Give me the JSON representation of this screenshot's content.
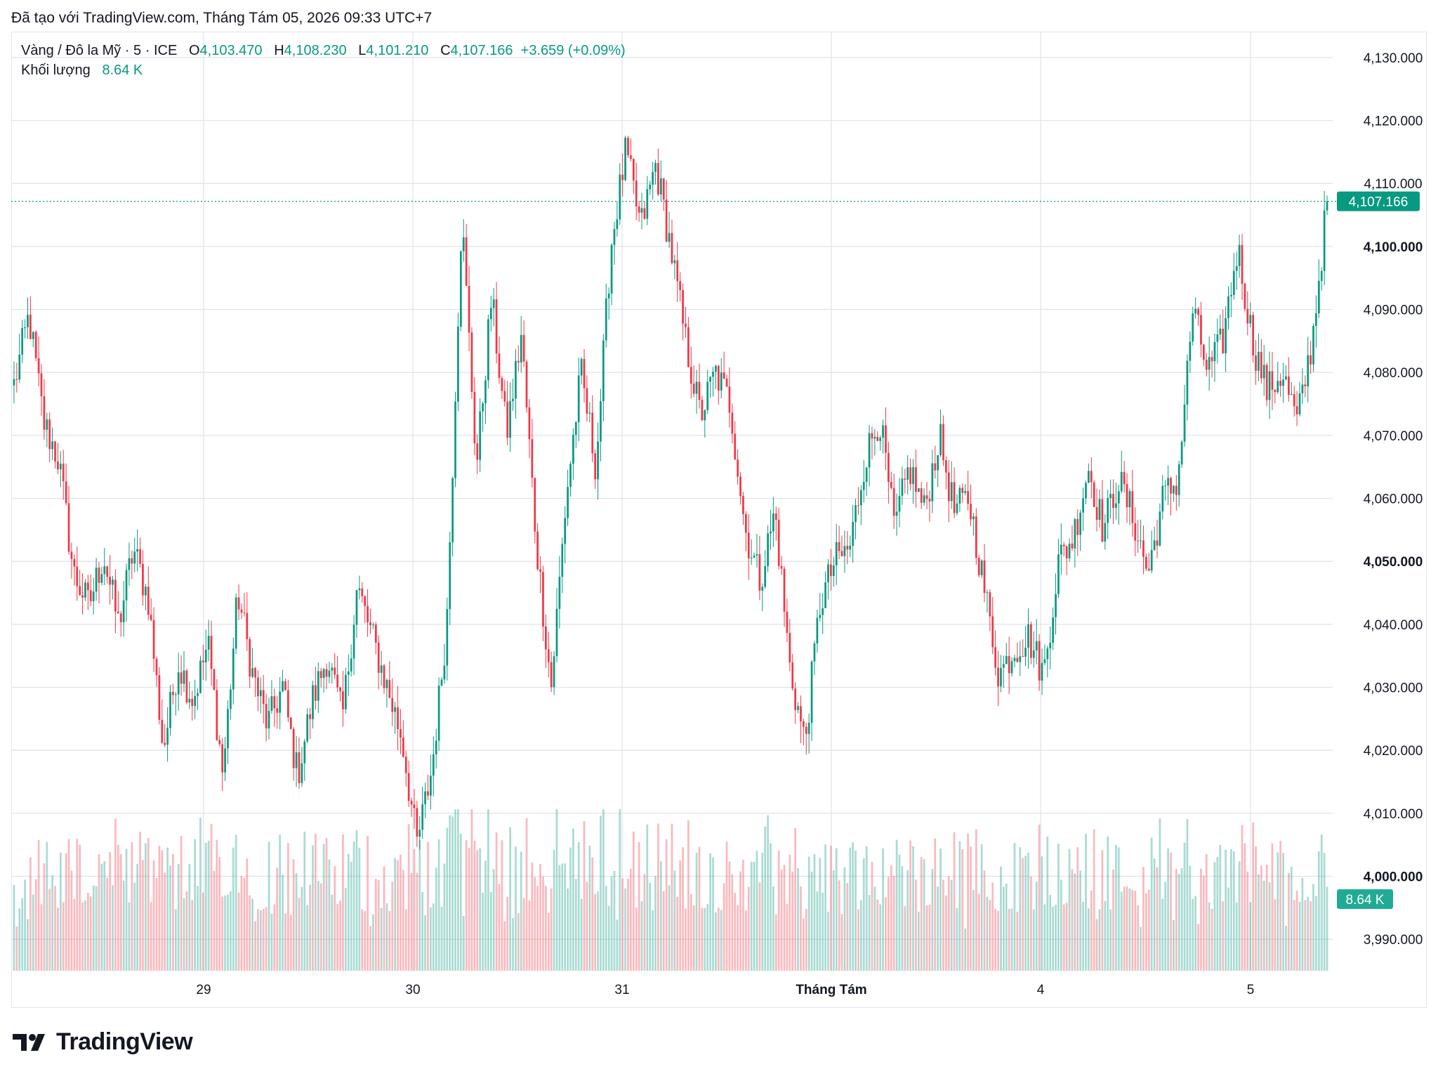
{
  "header": {
    "text": "Đã tạo với TradingView.com, Tháng Tám 05, 2026 09:33 UTC+7"
  },
  "legend": {
    "symbol": "Vàng / Đô la Mỹ · 5 · ICE",
    "open_label": "O",
    "open": "4,103.470",
    "high_label": "H",
    "high": "4,108.230",
    "low_label": "L",
    "low": "4,101.210",
    "close_label": "C",
    "close": "4,107.166",
    "change": "+3.659 (+0.09%)",
    "volume_label": "Khối lượng",
    "volume": "8.64 K"
  },
  "colors": {
    "up": "#089981",
    "down": "#f23645",
    "grid": "#e0e3eb",
    "text": "#131722"
  },
  "footer": {
    "brand": "TradingView",
    "logo_icon": "tradingview-logo-icon"
  },
  "chart_data": {
    "type": "candlestick",
    "symbol": "Vàng / Đô la Mỹ",
    "interval": "5",
    "y_axis_ticks": [
      "4,130.000",
      "4,120.000",
      "4,110.000",
      "4,100.000",
      "4,090.000",
      "4,080.000",
      "4,070.000",
      "4,060.000",
      "4,050.000",
      "4,040.000",
      "4,030.000",
      "4,020.000",
      "4,010.000",
      "4,000.000",
      "3,990.000"
    ],
    "y_axis_bold_ticks": [
      "4,100.000",
      "4,050.000",
      "4,000.000"
    ],
    "ylim": [
      3985,
      4134
    ],
    "x_axis_ticks": [
      "29",
      "30",
      "31",
      "Tháng Tám",
      "4",
      "5"
    ],
    "x_axis_bold_ticks": [
      "Tháng Tám"
    ],
    "last_price": 4107.166,
    "last_price_label": "4,107.166",
    "last_volume_label": "8.64 K",
    "grid": true,
    "close_path": [
      [
        "start",
        4078
      ],
      [
        "",
        4089
      ],
      [
        "",
        4072
      ],
      [
        "",
        4066
      ],
      [
        "",
        4048
      ],
      [
        "",
        4043
      ],
      [
        "",
        4051
      ],
      [
        "",
        4040
      ],
      [
        "",
        4052
      ],
      [
        "",
        4044
      ],
      [
        "",
        4020
      ],
      [
        "",
        4034
      ],
      [
        "",
        4028
      ],
      [
        "",
        4037
      ],
      [
        "",
        4016
      ],
      [
        "29",
        4045
      ],
      [
        "",
        4032
      ],
      [
        "",
        4024
      ],
      [
        "",
        4030
      ],
      [
        "",
        4016
      ],
      [
        "",
        4028
      ],
      [
        "",
        4035
      ],
      [
        "",
        4025
      ],
      [
        "",
        4046
      ],
      [
        "",
        4038
      ],
      [
        "",
        4030
      ],
      [
        "",
        4022
      ],
      [
        "",
        4005
      ],
      [
        "",
        4017
      ],
      [
        "30",
        4040
      ],
      [
        "",
        4105
      ],
      [
        "",
        4065
      ],
      [
        "",
        4092
      ],
      [
        "",
        4070
      ],
      [
        "",
        4086
      ],
      [
        "",
        4053
      ],
      [
        "",
        4030
      ],
      [
        "",
        4060
      ],
      [
        "",
        4080
      ],
      [
        "",
        4065
      ],
      [
        "31",
        4100
      ],
      [
        "",
        4115
      ],
      [
        "",
        4103
      ],
      [
        "",
        4113
      ],
      [
        "",
        4100
      ],
      [
        "",
        4085
      ],
      [
        "",
        4073
      ],
      [
        "",
        4080
      ],
      [
        "",
        4075
      ],
      [
        "",
        4055
      ],
      [
        "",
        4047
      ],
      [
        "",
        4058
      ],
      [
        "",
        4033
      ],
      [
        "",
        4021
      ],
      [
        "",
        4043
      ],
      [
        "Tháng Tám",
        4050
      ],
      [
        "",
        4052
      ],
      [
        "",
        4066
      ],
      [
        "",
        4073
      ],
      [
        "",
        4055
      ],
      [
        "",
        4065
      ],
      [
        "",
        4058
      ],
      [
        "",
        4070
      ],
      [
        "",
        4058
      ],
      [
        "",
        4060
      ],
      [
        "",
        4046
      ],
      [
        "",
        4032
      ],
      [
        "",
        4036
      ],
      [
        "4",
        4038
      ],
      [
        "",
        4032
      ],
      [
        "",
        4050
      ],
      [
        "",
        4054
      ],
      [
        "",
        4065
      ],
      [
        "",
        4055
      ],
      [
        "",
        4063
      ],
      [
        "",
        4057
      ],
      [
        "",
        4048
      ],
      [
        "",
        4060
      ],
      [
        "",
        4063
      ],
      [
        "",
        4090
      ],
      [
        "",
        4080
      ],
      [
        "",
        4085
      ],
      [
        "5",
        4100
      ],
      [
        "",
        4085
      ],
      [
        "",
        4077
      ],
      [
        "",
        4080
      ],
      [
        "",
        4072
      ],
      [
        "",
        4085
      ],
      [
        "",
        4107
      ]
    ],
    "volume_range": [
      0,
      12000
    ]
  }
}
